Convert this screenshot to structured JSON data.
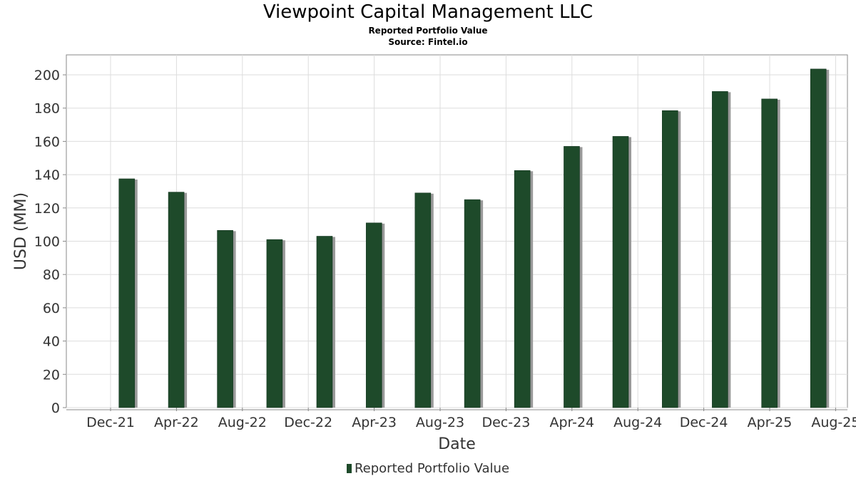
{
  "chart_data": {
    "type": "bar",
    "title": "Viewpoint Capital Management LLC",
    "subtitle": "Reported Portfolio Value",
    "source": "Source: Fintel.io",
    "xlabel": "Date",
    "ylabel": "USD (MM)",
    "x_tick_labels": [
      "Dec-21",
      "Apr-22",
      "Aug-22",
      "Dec-22",
      "Apr-23",
      "Aug-23",
      "Dec-23",
      "Apr-24",
      "Aug-24",
      "Dec-24",
      "Apr-25",
      "Aug-25"
    ],
    "categories": [
      "2021-12-31",
      "2022-03-31",
      "2022-06-30",
      "2022-09-30",
      "2022-12-31",
      "2023-03-31",
      "2023-06-30",
      "2023-09-30",
      "2023-12-31",
      "2024-03-31",
      "2024-06-30",
      "2024-09-30",
      "2024-12-31",
      "2025-03-31",
      "2025-06-30"
    ],
    "series": [
      {
        "name": "Reported Portfolio Value",
        "values": [
          137.5,
          129.5,
          106.5,
          101,
          103,
          111,
          129,
          125,
          142.5,
          157,
          163,
          178.5,
          190,
          185.5,
          203.5
        ]
      }
    ],
    "ylim": [
      0,
      212
    ],
    "y_ticks": [
      0,
      20,
      40,
      60,
      80,
      100,
      120,
      140,
      160,
      180,
      200
    ],
    "grid": true,
    "legend": "bottom",
    "colors": {
      "bar": "#1e4a2a",
      "bar_shadow": "#9a9a9a",
      "grid": "#dddddd",
      "axis": "#888888"
    }
  }
}
